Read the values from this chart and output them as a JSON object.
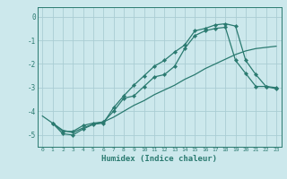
{
  "title": "",
  "xlabel": "Humidex (Indice chaleur)",
  "background_color": "#cce8ec",
  "grid_color": "#aacdd4",
  "line_color": "#2a7a70",
  "xlim": [
    -0.5,
    23.5
  ],
  "ylim": [
    -5.5,
    0.4
  ],
  "yticks": [
    0,
    -1,
    -2,
    -3,
    -4,
    -5
  ],
  "xticks": [
    0,
    1,
    2,
    3,
    4,
    5,
    6,
    7,
    8,
    9,
    10,
    11,
    12,
    13,
    14,
    15,
    16,
    17,
    18,
    19,
    20,
    21,
    22,
    23
  ],
  "line1_x": [
    0,
    1,
    2,
    3,
    4,
    5,
    6,
    7,
    8,
    9,
    10,
    11,
    12,
    13,
    14,
    15,
    16,
    17,
    18,
    19,
    20,
    21,
    22,
    23
  ],
  "line1_y": [
    -4.2,
    -4.5,
    -4.8,
    -4.9,
    -4.7,
    -4.55,
    -4.45,
    -4.25,
    -4.0,
    -3.75,
    -3.55,
    -3.3,
    -3.1,
    -2.9,
    -2.65,
    -2.45,
    -2.2,
    -2.0,
    -1.8,
    -1.6,
    -1.45,
    -1.35,
    -1.3,
    -1.25
  ],
  "line2_x": [
    1,
    2,
    3,
    4,
    5,
    6,
    7,
    8,
    9,
    10,
    11,
    12,
    13,
    14,
    15,
    16,
    17,
    18,
    19,
    20,
    21,
    22,
    23
  ],
  "line2_y": [
    -4.5,
    -4.95,
    -5.0,
    -4.75,
    -4.55,
    -4.5,
    -3.85,
    -3.35,
    -2.9,
    -2.5,
    -2.1,
    -1.85,
    -1.5,
    -1.2,
    -0.6,
    -0.5,
    -0.35,
    -0.3,
    -0.4,
    -1.85,
    -2.45,
    -2.95,
    -3.05
  ],
  "line3_x": [
    1,
    2,
    3,
    4,
    5,
    6,
    7,
    8,
    9,
    10,
    11,
    12,
    13,
    14,
    15,
    16,
    17,
    18,
    19,
    20,
    21,
    22,
    23
  ],
  "line3_y": [
    -4.5,
    -4.85,
    -4.85,
    -4.6,
    -4.5,
    -4.45,
    -4.0,
    -3.45,
    -3.35,
    -2.95,
    -2.55,
    -2.45,
    -2.1,
    -1.35,
    -0.8,
    -0.6,
    -0.5,
    -0.45,
    -1.85,
    -2.4,
    -2.95,
    -2.95,
    -3.0
  ]
}
